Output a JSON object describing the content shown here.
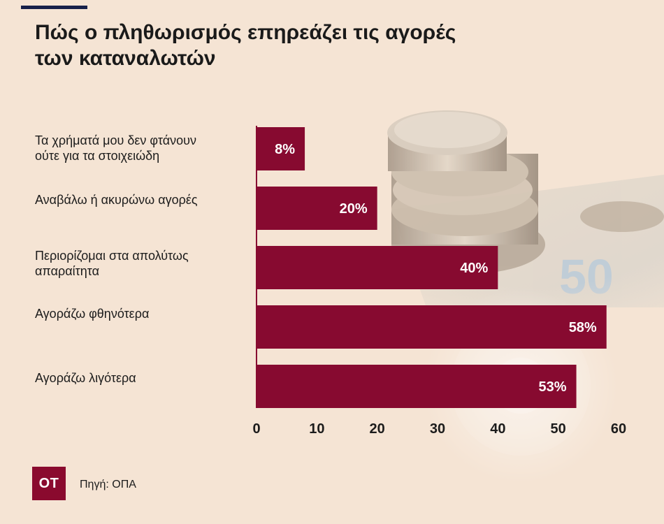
{
  "title_lines": [
    "Πώς ο πληθωρισμός επηρεάζει τις αγορές",
    "των καταναλωτών"
  ],
  "colors": {
    "bar": "#870a30",
    "background": "#f5e4d4",
    "bar_label": "#ffffff"
  },
  "chart_data": {
    "type": "bar",
    "orientation": "horizontal",
    "categories": [
      "Τα χρήματά μου δεν φτάνουν ούτε για τα στοιχειώδη",
      "Αναβάλω ή ακυρώνω αγορές",
      "Περιορίζομαι στα απολύτως απαραίτητα",
      "Αγοράζω φθηνότερα",
      "Αγοράζω λιγότερα"
    ],
    "values": [
      8,
      20,
      40,
      58,
      53
    ],
    "data_labels": [
      "8%",
      "20%",
      "40%",
      "58%",
      "53%"
    ],
    "xlim": [
      0,
      60
    ],
    "xticks": [
      0,
      10,
      20,
      30,
      40,
      50,
      60
    ],
    "grid": false,
    "legend": "none"
  },
  "category_label_lines": [
    [
      "Τα χρήματά μου δεν φτάνουν",
      "ούτε για τα στοιχειώδη"
    ],
    [
      "Αναβάλω ή ακυρώνω αγορές"
    ],
    [
      "Περιορίζομαι στα απολύτως",
      "απαραίτητα"
    ],
    [
      "Αγοράζω φθηνότερα"
    ],
    [
      "Αγοράζω λιγότερα"
    ]
  ],
  "logo_text": "ΟΤ",
  "source": "Πηγή: ΟΠΑ"
}
